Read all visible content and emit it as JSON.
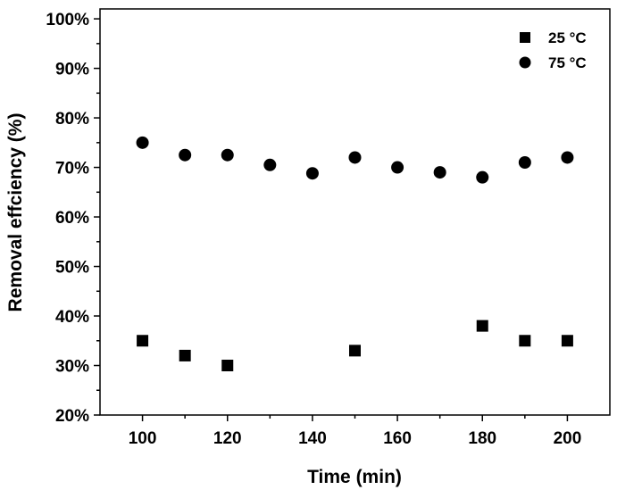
{
  "chart_data": {
    "type": "scatter",
    "title": "",
    "xlabel": "Time (min)",
    "ylabel": "Removal effciency (%)",
    "xlim": [
      90,
      210
    ],
    "ylim": [
      20,
      102
    ],
    "x_ticks": [
      100,
      120,
      140,
      160,
      180,
      200
    ],
    "x_tick_labels": [
      "100",
      "120",
      "140",
      "160",
      "180",
      "200"
    ],
    "y_ticks": [
      20,
      30,
      40,
      50,
      60,
      70,
      80,
      90,
      100
    ],
    "y_tick_labels": [
      "20%",
      "30%",
      "40%",
      "50%",
      "60%",
      "70%",
      "80%",
      "90%",
      "100%"
    ],
    "legend_position": "top-right",
    "grid": false,
    "series": [
      {
        "name": "25 °C",
        "marker": "square",
        "color": "#000000",
        "x": [
          100,
          110,
          120,
          150,
          180,
          190,
          200
        ],
        "y": [
          35,
          32,
          30,
          33,
          38,
          35,
          35
        ]
      },
      {
        "name": "75 °C",
        "marker": "circle",
        "color": "#000000",
        "x": [
          100,
          110,
          120,
          130,
          140,
          150,
          160,
          170,
          180,
          190,
          200
        ],
        "y": [
          75,
          72.5,
          72.5,
          70.5,
          68.8,
          72,
          70,
          69,
          68,
          71,
          72
        ]
      }
    ]
  }
}
